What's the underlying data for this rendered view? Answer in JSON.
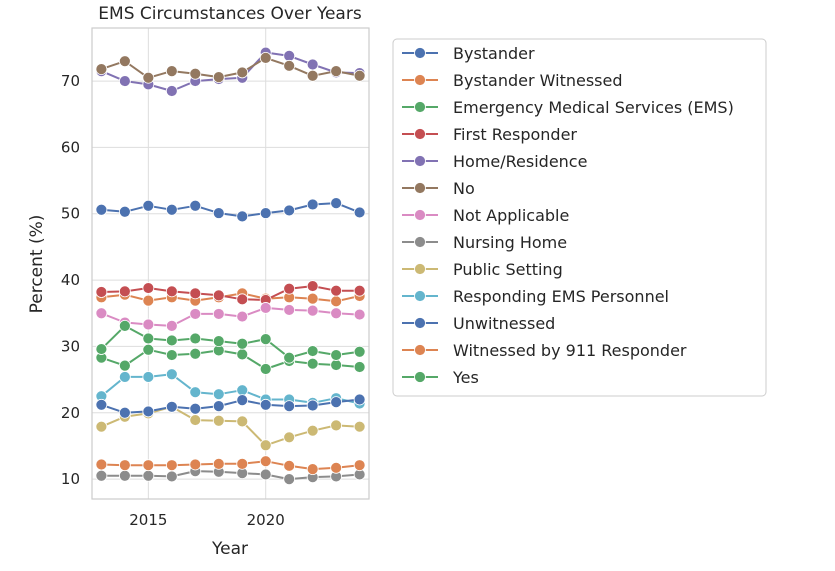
{
  "chart_data": {
    "type": "line",
    "title": "EMS Circumstances Over Years",
    "xlabel": "Year",
    "ylabel": "Percent (%)",
    "xlim": [
      2012.6,
      2024.4
    ],
    "ylim": [
      7,
      78
    ],
    "x_ticks": [
      2015,
      2020
    ],
    "y_ticks": [
      10,
      20,
      30,
      40,
      50,
      60,
      70
    ],
    "grid": true,
    "legend_position": "outside-right",
    "x": [
      2013,
      2014,
      2015,
      2016,
      2017,
      2018,
      2019,
      2020,
      2021,
      2022,
      2023,
      2024
    ],
    "series": [
      {
        "name": "Bystander",
        "color": "#4c72b0",
        "values": [
          50.6,
          50.3,
          51.2,
          50.6,
          51.2,
          50.1,
          49.6,
          50.1,
          50.5,
          51.4,
          51.6,
          50.2
        ]
      },
      {
        "name": "Bystander Witnessed",
        "color": "#dd8452",
        "values": [
          37.4,
          37.8,
          36.9,
          37.4,
          36.9,
          37.4,
          38.0,
          37.2,
          37.4,
          37.2,
          36.8,
          37.6
        ]
      },
      {
        "name": "Emergency Medical Services (EMS)",
        "color": "#55a868",
        "values": [
          28.3,
          27.1,
          29.5,
          28.7,
          28.9,
          29.4,
          28.8,
          26.6,
          27.8,
          27.4,
          27.2,
          26.9
        ]
      },
      {
        "name": "First Responder",
        "color": "#c44e52",
        "values": [
          38.2,
          38.3,
          38.8,
          38.3,
          38.0,
          37.7,
          37.1,
          37.0,
          38.7,
          39.1,
          38.4,
          38.4
        ]
      },
      {
        "name": "Home/Residence",
        "color": "#8172b3",
        "values": [
          71.5,
          70.0,
          69.5,
          68.5,
          70.0,
          70.3,
          70.5,
          74.3,
          73.8,
          72.5,
          71.3,
          71.2
        ]
      },
      {
        "name": "No",
        "color": "#937860",
        "values": [
          71.8,
          73.0,
          70.5,
          71.5,
          71.1,
          70.6,
          71.3,
          73.5,
          72.3,
          70.8,
          71.5,
          70.8
        ]
      },
      {
        "name": "Not Applicable",
        "color": "#da8bc3",
        "values": [
          35.0,
          33.6,
          33.3,
          33.1,
          34.9,
          34.9,
          34.5,
          35.8,
          35.5,
          35.4,
          35.0,
          34.8
        ]
      },
      {
        "name": "Nursing Home",
        "color": "#8c8c8c",
        "values": [
          10.5,
          10.5,
          10.5,
          10.4,
          11.2,
          11.1,
          10.9,
          10.7,
          10.0,
          10.3,
          10.4,
          10.7
        ]
      },
      {
        "name": "Public Setting",
        "color": "#ccb974",
        "values": [
          17.9,
          19.4,
          19.9,
          20.9,
          18.9,
          18.8,
          18.7,
          15.1,
          16.3,
          17.3,
          18.1,
          17.9
        ]
      },
      {
        "name": "Responding EMS Personnel",
        "color": "#64b5cd",
        "values": [
          22.5,
          25.4,
          25.4,
          25.8,
          23.1,
          22.8,
          23.4,
          22.0,
          22.0,
          21.5,
          22.2,
          21.4
        ]
      },
      {
        "name": "Unwitnessed",
        "color": "#4c72b0",
        "values": [
          21.2,
          20.0,
          20.2,
          20.9,
          20.6,
          21.0,
          21.9,
          21.2,
          21.0,
          21.1,
          21.6,
          22.0
        ]
      },
      {
        "name": "Witnessed by 911 Responder",
        "color": "#dd8452",
        "values": [
          12.2,
          12.1,
          12.1,
          12.1,
          12.2,
          12.3,
          12.3,
          12.7,
          12.0,
          11.5,
          11.7,
          12.1
        ]
      },
      {
        "name": "Yes",
        "color": "#55a868",
        "values": [
          29.6,
          33.1,
          31.2,
          30.9,
          31.2,
          30.8,
          30.4,
          31.1,
          28.3,
          29.3,
          28.7,
          29.2
        ]
      }
    ]
  }
}
